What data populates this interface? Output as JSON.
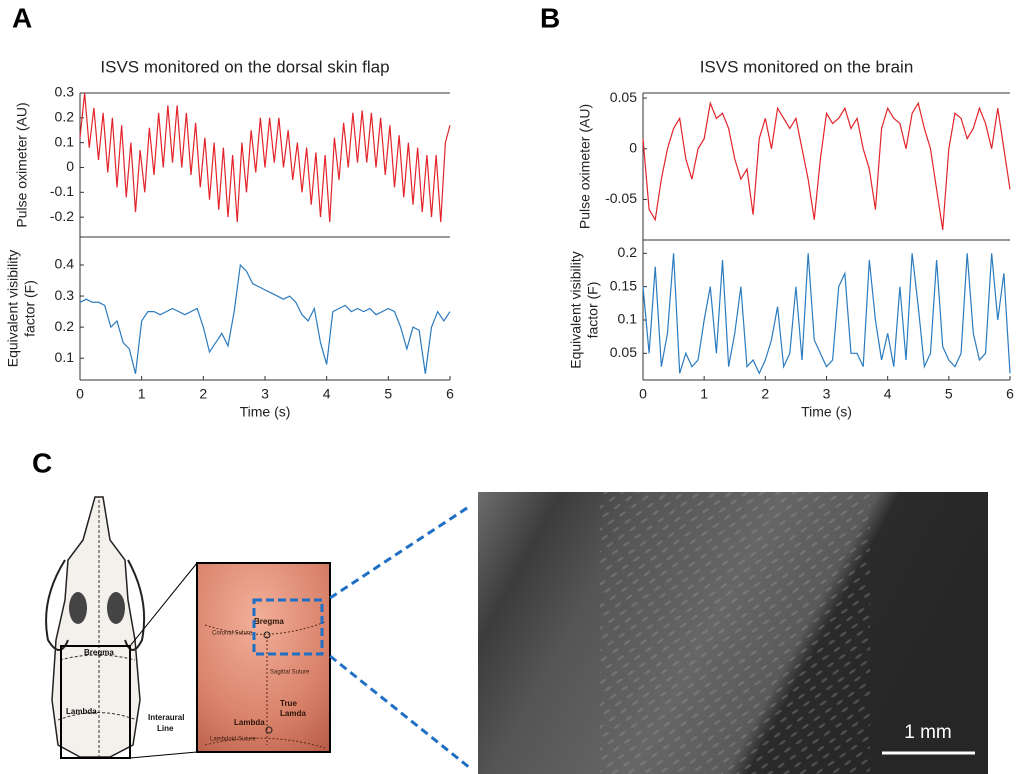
{
  "panel_labels": [
    "A",
    "B",
    "C"
  ],
  "chart_data": [
    {
      "type": "line",
      "title": "ISVS monitored on the dorsal skin flap",
      "ylabel": "Pulse oximeter (AU)",
      "x": [
        0,
        0.075,
        0.15,
        0.225,
        0.3,
        0.375,
        0.45,
        0.525,
        0.6,
        0.675,
        0.75,
        0.825,
        0.9,
        0.975,
        1.05,
        1.125,
        1.2,
        1.275,
        1.35,
        1.425,
        1.5,
        1.575,
        1.65,
        1.725,
        1.8,
        1.875,
        1.95,
        2.025,
        2.1,
        2.175,
        2.25,
        2.325,
        2.4,
        2.475,
        2.55,
        2.625,
        2.7,
        2.775,
        2.85,
        2.925,
        3,
        3.075,
        3.15,
        3.225,
        3.3,
        3.375,
        3.45,
        3.525,
        3.6,
        3.675,
        3.75,
        3.825,
        3.9,
        3.975,
        4.05,
        4.125,
        4.2,
        4.275,
        4.35,
        4.425,
        4.5,
        4.575,
        4.65,
        4.725,
        4.8,
        4.875,
        4.95,
        5.025,
        5.1,
        5.175,
        5.25,
        5.325,
        5.4,
        5.475,
        5.55,
        5.625,
        5.7,
        5.775,
        5.85,
        5.925,
        6
      ],
      "series": [
        {
          "color": "#e3242b",
          "values": [
            0.12,
            0.3,
            0.08,
            0.24,
            0.03,
            0.22,
            -0.02,
            0.2,
            -0.08,
            0.17,
            -0.12,
            0.1,
            -0.18,
            0.07,
            -0.1,
            0.16,
            -0.03,
            0.22,
            0,
            0.25,
            0.02,
            0.25,
            0,
            0.22,
            -0.03,
            0.18,
            -0.08,
            0.12,
            -0.13,
            0.1,
            -0.17,
            0.08,
            -0.2,
            0.05,
            -0.22,
            0.1,
            -0.1,
            0.15,
            -0.02,
            0.2,
            0,
            0.2,
            0.02,
            0.2,
            0,
            0.15,
            -0.05,
            0.1,
            -0.1,
            0.08,
            -0.15,
            0.06,
            -0.2,
            0.05,
            -0.22,
            0.12,
            -0.05,
            0.18,
            0,
            0.22,
            0.02,
            0.23,
            0.02,
            0.22,
            0,
            0.2,
            -0.03,
            0.17,
            -0.08,
            0.13,
            -0.12,
            0.1,
            -0.15,
            0.08,
            -0.18,
            0.05,
            -0.2,
            0.05,
            -0.22,
            0.1,
            0.17
          ]
        }
      ],
      "xlim": [
        0,
        6
      ],
      "ylim": [
        -0.28,
        0.3
      ],
      "yticks": [
        -0.2,
        -0.1,
        0,
        0.1,
        0.2,
        0.3
      ]
    },
    {
      "type": "line",
      "xlabel": "Time (s)",
      "ylabel": [
        "Equivalent visibility",
        "factor (F)"
      ],
      "x": [
        0,
        0.1,
        0.2,
        0.3,
        0.4,
        0.5,
        0.6,
        0.7,
        0.8,
        0.9,
        1,
        1.1,
        1.2,
        1.3,
        1.4,
        1.5,
        1.6,
        1.7,
        1.8,
        1.9,
        2,
        2.1,
        2.2,
        2.3,
        2.4,
        2.5,
        2.6,
        2.7,
        2.8,
        2.9,
        3,
        3.1,
        3.2,
        3.3,
        3.4,
        3.5,
        3.6,
        3.7,
        3.8,
        3.9,
        4,
        4.1,
        4.2,
        4.3,
        4.4,
        4.5,
        4.6,
        4.7,
        4.8,
        4.9,
        5,
        5.1,
        5.2,
        5.3,
        5.4,
        5.5,
        5.6,
        5.7,
        5.8,
        5.9,
        6
      ],
      "series": [
        {
          "color": "#2b7bbf",
          "values": [
            0.28,
            0.29,
            0.28,
            0.28,
            0.27,
            0.2,
            0.22,
            0.15,
            0.13,
            0.05,
            0.22,
            0.25,
            0.25,
            0.24,
            0.25,
            0.26,
            0.25,
            0.24,
            0.25,
            0.26,
            0.2,
            0.12,
            0.15,
            0.18,
            0.14,
            0.25,
            0.4,
            0.38,
            0.34,
            0.33,
            0.32,
            0.31,
            0.3,
            0.29,
            0.3,
            0.28,
            0.24,
            0.22,
            0.26,
            0.15,
            0.08,
            0.25,
            0.26,
            0.27,
            0.25,
            0.26,
            0.25,
            0.26,
            0.24,
            0.25,
            0.26,
            0.25,
            0.2,
            0.13,
            0.2,
            0.19,
            0.05,
            0.2,
            0.25,
            0.22,
            0.25
          ]
        }
      ],
      "xlim": [
        0,
        6
      ],
      "xticks": [
        0,
        1,
        2,
        3,
        4,
        5,
        6
      ],
      "ylim": [
        0.03,
        0.49
      ],
      "yticks": [
        0.1,
        0.2,
        0.3,
        0.4
      ]
    },
    {
      "type": "line",
      "title": "ISVS monitored on the brain",
      "ylabel": "Pulse oximeter (AU)",
      "x": [
        0,
        0.1,
        0.2,
        0.3,
        0.4,
        0.5,
        0.6,
        0.7,
        0.8,
        0.9,
        1,
        1.1,
        1.2,
        1.3,
        1.4,
        1.5,
        1.6,
        1.7,
        1.8,
        1.9,
        2,
        2.1,
        2.2,
        2.3,
        2.4,
        2.5,
        2.6,
        2.7,
        2.8,
        2.9,
        3,
        3.1,
        3.2,
        3.3,
        3.4,
        3.5,
        3.6,
        3.7,
        3.8,
        3.9,
        4,
        4.1,
        4.2,
        4.3,
        4.4,
        4.5,
        4.6,
        4.7,
        4.8,
        4.9,
        5,
        5.1,
        5.2,
        5.3,
        5.4,
        5.5,
        5.6,
        5.7,
        5.8,
        5.9,
        6
      ],
      "series": [
        {
          "color": "#e3242b",
          "values": [
            0.01,
            -0.06,
            -0.07,
            -0.03,
            0,
            0.02,
            0.03,
            -0.01,
            -0.03,
            0,
            0.01,
            0.045,
            0.03,
            0.035,
            0.02,
            -0.01,
            -0.03,
            -0.02,
            -0.065,
            0.01,
            0.03,
            0,
            0.04,
            0.03,
            0.02,
            0.03,
            0,
            -0.03,
            -0.07,
            -0.01,
            0.035,
            0.025,
            0.03,
            0.04,
            0.02,
            0.03,
            0,
            -0.02,
            -0.06,
            0.02,
            0.04,
            0.03,
            0.025,
            0,
            0.035,
            0.045,
            0.02,
            0,
            -0.04,
            -0.08,
            0,
            0.035,
            0.03,
            0.01,
            0.02,
            0.04,
            0.025,
            0,
            0.04,
            0,
            -0.04
          ]
        }
      ],
      "xlim": [
        0,
        6
      ],
      "ylim": [
        -0.09,
        0.055
      ],
      "yticks": [
        -0.05,
        0,
        0.05
      ]
    },
    {
      "type": "line",
      "xlabel": "Time (s)",
      "ylabel": [
        "Equivalent visibility",
        "factor (F)"
      ],
      "x": [
        0,
        0.1,
        0.2,
        0.3,
        0.4,
        0.5,
        0.6,
        0.7,
        0.8,
        0.9,
        1,
        1.1,
        1.2,
        1.3,
        1.4,
        1.5,
        1.6,
        1.7,
        1.8,
        1.9,
        2,
        2.1,
        2.2,
        2.3,
        2.4,
        2.5,
        2.6,
        2.7,
        2.8,
        2.9,
        3,
        3.1,
        3.2,
        3.3,
        3.4,
        3.5,
        3.6,
        3.7,
        3.8,
        3.9,
        4,
        4.1,
        4.2,
        4.3,
        4.4,
        4.5,
        4.6,
        4.7,
        4.8,
        4.9,
        5,
        5.1,
        5.2,
        5.3,
        5.4,
        5.5,
        5.6,
        5.7,
        5.8,
        5.9,
        6
      ],
      "series": [
        {
          "color": "#2b7bbf",
          "values": [
            0.15,
            0.05,
            0.18,
            0.03,
            0.08,
            0.2,
            0.02,
            0.05,
            0.03,
            0.04,
            0.1,
            0.15,
            0.05,
            0.19,
            0.03,
            0.08,
            0.15,
            0.03,
            0.04,
            0.02,
            0.04,
            0.07,
            0.12,
            0.03,
            0.05,
            0.15,
            0.04,
            0.2,
            0.07,
            0.05,
            0.03,
            0.04,
            0.15,
            0.17,
            0.05,
            0.05,
            0.03,
            0.19,
            0.1,
            0.04,
            0.08,
            0.03,
            0.15,
            0.04,
            0.2,
            0.12,
            0.03,
            0.05,
            0.19,
            0.06,
            0.04,
            0.03,
            0.05,
            0.2,
            0.08,
            0.04,
            0.05,
            0.2,
            0.1,
            0.17,
            0.02
          ]
        }
      ],
      "xlim": [
        0,
        6
      ],
      "xticks": [
        0,
        1,
        2,
        3,
        4,
        5,
        6
      ],
      "ylim": [
        0.01,
        0.22
      ],
      "yticks": [
        0.05,
        0.1,
        0.15,
        0.2
      ]
    }
  ],
  "panel_c": {
    "skull_labels": [
      "Bregma",
      "Lambda",
      "Interaural",
      "Line"
    ],
    "photo_labels": [
      "Bregma",
      "Coronal Suture",
      "Sagittal Suture",
      "True",
      "Lamda",
      "Lambda",
      "Lambdoid Suture"
    ],
    "scale_bar": "1 mm"
  }
}
